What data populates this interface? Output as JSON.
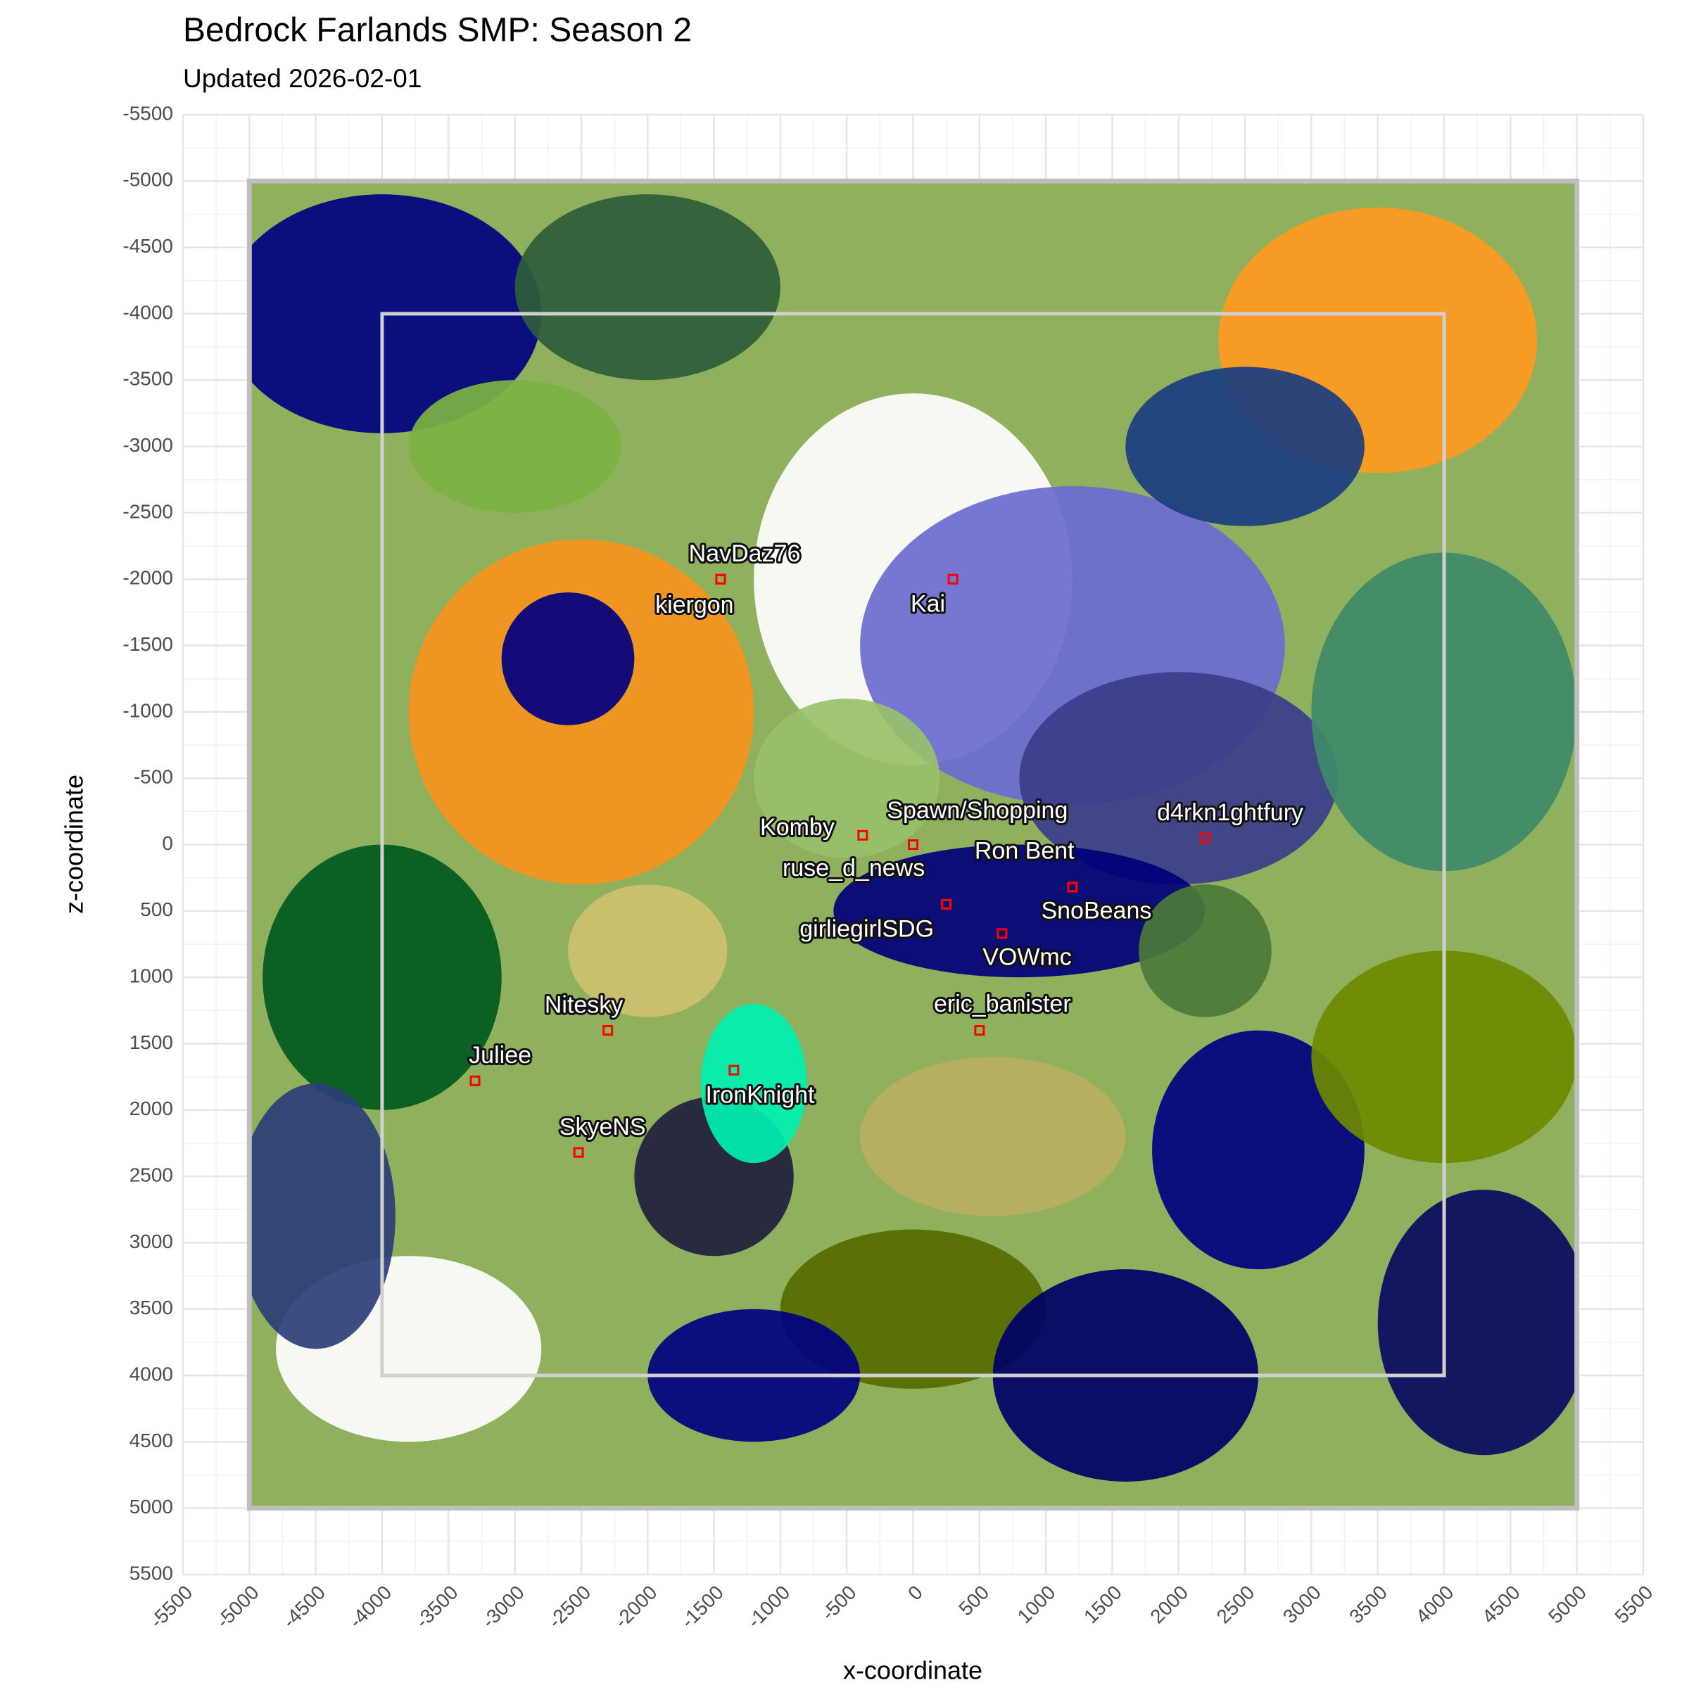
{
  "chart_data": {
    "type": "scatter",
    "title": "Bedrock Farlands SMP: Season 2",
    "subtitle": "Updated 2026-02-01",
    "x_label": "x-coordinate",
    "y_label": "z-coordinate",
    "xlim": [
      -5500,
      5500
    ],
    "ylim": [
      -5500,
      5500
    ],
    "y_reverse": true,
    "grid": true,
    "xticks": [
      -5500,
      -5000,
      -4500,
      -4000,
      -3500,
      -3000,
      -2500,
      -2000,
      -1500,
      -1000,
      -500,
      0,
      500,
      1000,
      1500,
      2000,
      2500,
      3000,
      3500,
      4000,
      4500,
      5000,
      5500
    ],
    "yticks": [
      -5500,
      -5000,
      -4500,
      -4000,
      -3500,
      -3000,
      -2500,
      -2000,
      -1500,
      -1000,
      -500,
      0,
      500,
      1000,
      1500,
      2000,
      2500,
      3000,
      3500,
      4000,
      4500,
      5000,
      5500
    ],
    "marker_color": "#ff0000",
    "labels": [
      "NavDaz76",
      "kiergon",
      "Kai",
      "Komby",
      "Spawn/Shopping",
      "Ron Bent",
      "SnoBeans",
      "ruse_d_news",
      "girliegirlSDG",
      "VOWmc",
      "eric_banister",
      "d4rkn1ghtfury",
      "Nitesky",
      "Juliee",
      "IronKnight",
      "SkyeNS"
    ],
    "x": [
      -1450,
      -1450,
      300,
      -380,
      0,
      1200,
      1200,
      250,
      250,
      670,
      500,
      2200,
      -2300,
      -3300,
      -1350,
      -2520
    ],
    "values": [
      -2000,
      -2000,
      -2000,
      -70,
      0,
      320,
      320,
      450,
      450,
      670,
      1400,
      -50,
      1400,
      1780,
      1700,
      2320
    ]
  }
}
